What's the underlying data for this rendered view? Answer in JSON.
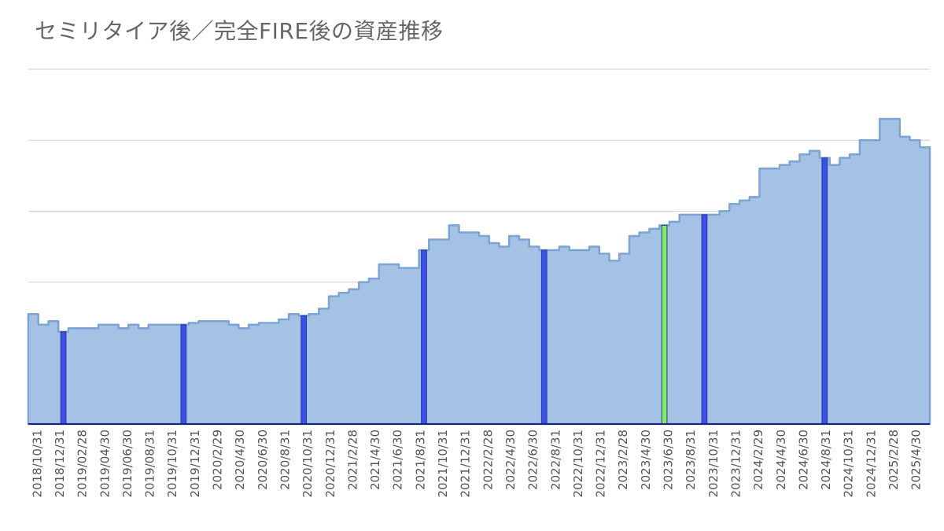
{
  "title": "セミリタイア後／完全FIRE後の資産推移",
  "colors": {
    "area_fill": "#a4c2e3",
    "area_stroke": "#7ba3d6",
    "marker": "#3b4ef0",
    "marker_highlight": "#7cf05a",
    "grid": "#cccccc",
    "axis": "#1a237e"
  },
  "chart_data": {
    "type": "area",
    "title": "セミリタイア後／完全FIRE後の資産推移",
    "grid": true,
    "y_axis_labels_shown": false,
    "ylim": [
      0,
      100
    ],
    "x_tick_labels": [
      "2018/10/31",
      "2018/12/31",
      "2019/02/28",
      "2019/04/30",
      "2019/06/30",
      "2019/08/31",
      "2019/10/31",
      "2019/12/31",
      "2020/2/29",
      "2020/4/30",
      "2020/6/30",
      "2020/8/31",
      "2020/10/31",
      "2020/12/31",
      "2021/2/28",
      "2021/4/30",
      "2021/6/30",
      "2021/8/31",
      "2021/10/31",
      "2021/12/31",
      "2022/2/28",
      "2022/4/30",
      "2022/6/30",
      "2022/8/31",
      "2022/10/31",
      "2022/12/31",
      "2023/2/28",
      "2023/4/30",
      "2023/6/30",
      "2023/8/31",
      "2023/10/31",
      "2023/12/31",
      "2024/2/29",
      "2024/4/30",
      "2024/6/30",
      "2024/8/31",
      "2024/10/31",
      "2024/12/31",
      "2025/2/28",
      "2025/4/30"
    ],
    "values": [
      31,
      28,
      29,
      26,
      27,
      27,
      27,
      28,
      28,
      27,
      28,
      27,
      28,
      28,
      28,
      28,
      28.5,
      29,
      29,
      29,
      28,
      27,
      28,
      28.5,
      28.5,
      29.5,
      31,
      30.5,
      31,
      32.5,
      36,
      37,
      38,
      40,
      41,
      45,
      45,
      44,
      44,
      49,
      52,
      52,
      56,
      54,
      54,
      53,
      51,
      50,
      53,
      52,
      50,
      49,
      49,
      50,
      49,
      49,
      50,
      48,
      46,
      48,
      53,
      54,
      55,
      56,
      57,
      59,
      59,
      59,
      59,
      60,
      62,
      63,
      64,
      72,
      72,
      73,
      74,
      76,
      77,
      75,
      73,
      75,
      76,
      80,
      80,
      86,
      86,
      81,
      80,
      78
    ],
    "markers": [
      {
        "index": 3,
        "kind": "year_end"
      },
      {
        "index": 15,
        "kind": "year_end"
      },
      {
        "index": 27,
        "kind": "year_end"
      },
      {
        "index": 39,
        "kind": "year_end"
      },
      {
        "index": 51,
        "kind": "year_end"
      },
      {
        "index": 63,
        "kind": "highlight"
      },
      {
        "index": 67,
        "kind": "year_end"
      },
      {
        "index": 79,
        "kind": "year_end"
      }
    ]
  }
}
